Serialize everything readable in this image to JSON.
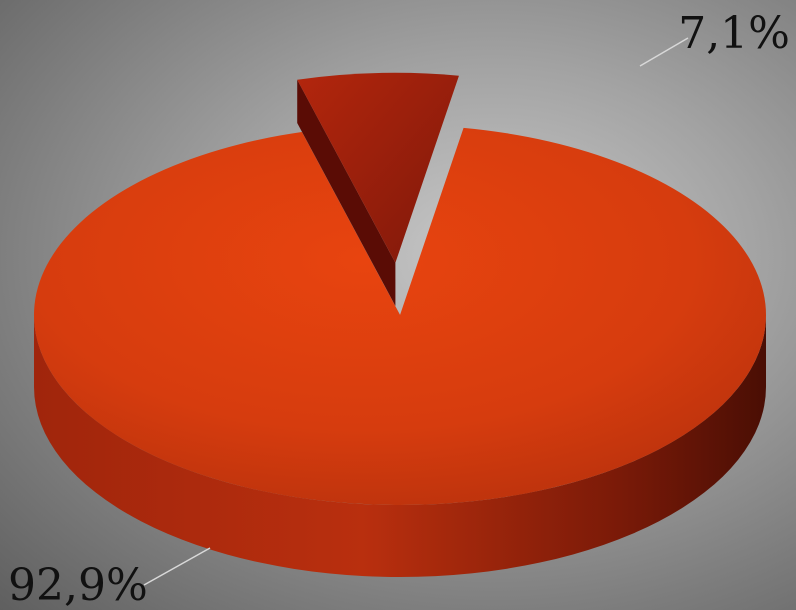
{
  "chart_data": {
    "type": "pie",
    "style": "3d-exploded",
    "slices": [
      {
        "label": "92,9%",
        "value": 92.9,
        "color": "#d03a0f",
        "exploded": false
      },
      {
        "label": "7,1%",
        "value": 7.1,
        "color": "#8f1a0b",
        "exploded": true
      }
    ]
  }
}
